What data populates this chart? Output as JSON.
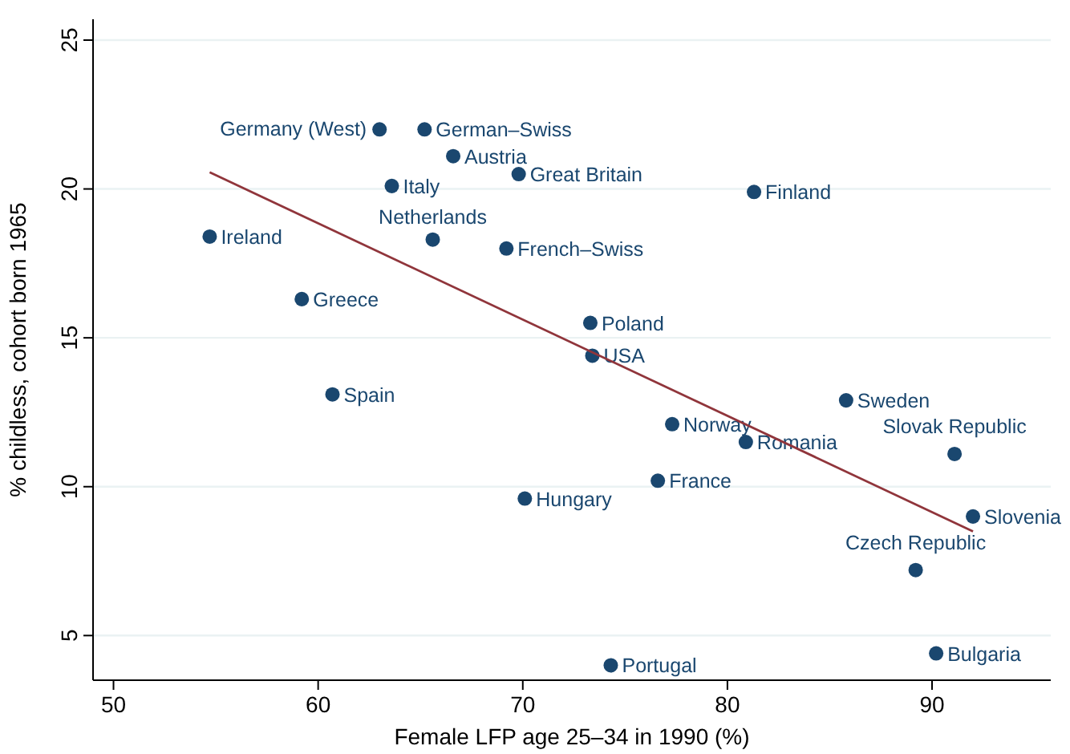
{
  "chart_data": {
    "type": "scatter",
    "xlabel": "Female LFP age 25–34 in 1990 (%)",
    "ylabel": "% childless, cohort born 1965",
    "xlim": [
      49,
      95.8
    ],
    "ylim": [
      3.5,
      25.7
    ],
    "xticks": [
      50,
      60,
      70,
      80,
      90
    ],
    "yticks": [
      5,
      10,
      15,
      20,
      25
    ],
    "grid": "y",
    "series": [
      {
        "marker": "circle",
        "color": "#1a476f",
        "x": [
          63.0,
          65.2,
          66.6,
          69.8,
          63.6,
          81.3,
          54.7,
          65.6,
          69.2,
          59.2,
          73.3,
          73.4,
          60.7,
          85.8,
          77.3,
          80.9,
          91.1,
          76.6,
          70.1,
          92.0,
          89.2,
          90.2,
          74.3
        ],
        "values": [
          22.0,
          22.0,
          21.1,
          20.5,
          20.1,
          19.9,
          18.4,
          18.3,
          18.0,
          16.3,
          15.5,
          14.4,
          13.1,
          12.9,
          12.1,
          11.5,
          11.1,
          10.2,
          9.6,
          9.0,
          7.2,
          4.4,
          4.0
        ],
        "value_labels": [
          "Germany (West)",
          "German–Swiss",
          "Austria",
          "Great Britain",
          "Italy",
          "Finland",
          "Ireland",
          "Netherlands",
          "French–Swiss",
          "Greece",
          "Poland",
          "USA",
          "Spain",
          "Sweden",
          "Norway",
          "Romania",
          "Slovak Republic",
          "France",
          "Hungary",
          "Slovenia",
          "Czech Republic",
          "Bulgaria",
          "Portugal"
        ]
      },
      {
        "type": "line",
        "color": "#90353b",
        "x": [
          54.7,
          92.0
        ],
        "values": [
          20.56,
          8.5
        ]
      }
    ]
  }
}
